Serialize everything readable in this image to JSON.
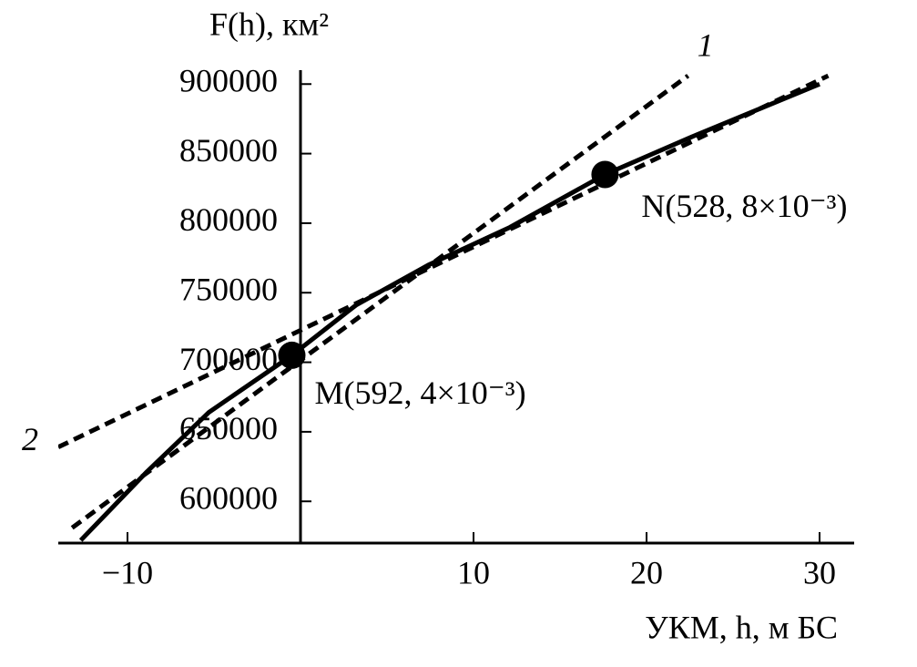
{
  "chart_data": {
    "type": "line",
    "y_label": "F(h), км²",
    "x_label": "УКМ, h, м БС",
    "xlim": [
      -14,
      32
    ],
    "ylim": [
      570000,
      910000
    ],
    "xticks": [
      {
        "value": -10,
        "label": "−10"
      },
      10,
      20,
      30
    ],
    "yticks": [
      600000,
      650000,
      700000,
      750000,
      800000,
      850000,
      900000
    ],
    "series": [
      {
        "color": "#000000",
        "dash": false,
        "x": [
          -12.7,
          -8.9,
          -5.3,
          -0.5,
          3.2,
          7.4,
          12.1,
          17.6,
          22.6,
          30
        ],
        "values": [
          572000,
          621000,
          664000,
          705000,
          741000,
          770000,
          797000,
          835000,
          862000,
          900000
        ]
      },
      {
        "name": "1",
        "color": "#000000",
        "dash": true,
        "x": [
          -13.2,
          22.4
        ],
        "values": [
          581000,
          906000
        ]
      },
      {
        "name": "2",
        "color": "#000000",
        "dash": true,
        "x": [
          -14,
          30.5
        ],
        "values": [
          639000,
          906000
        ]
      }
    ],
    "points": [
      {
        "label": "M(592, 4×10⁻³)",
        "x": -0.5,
        "y": 705000
      },
      {
        "label": "N(528, 8×10⁻³)",
        "x": 17.6,
        "y": 835000
      }
    ]
  }
}
